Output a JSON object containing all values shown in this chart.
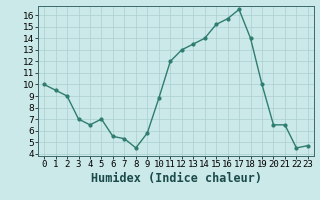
{
  "x": [
    0,
    1,
    2,
    3,
    4,
    5,
    6,
    7,
    8,
    9,
    10,
    11,
    12,
    13,
    14,
    15,
    16,
    17,
    18,
    19,
    20,
    21,
    22,
    23
  ],
  "y": [
    10.0,
    9.5,
    9.0,
    7.0,
    6.5,
    7.0,
    5.5,
    5.3,
    4.5,
    5.8,
    8.8,
    12.0,
    13.0,
    13.5,
    14.0,
    15.2,
    15.7,
    16.5,
    14.0,
    10.0,
    6.5,
    6.5,
    4.5,
    4.7
  ],
  "line_color": "#2e7d6e",
  "marker": "o",
  "marker_size": 2.0,
  "line_width": 1.0,
  "xlabel": "Humidex (Indice chaleur)",
  "ylim": [
    3.8,
    16.8
  ],
  "xlim": [
    -0.5,
    23.5
  ],
  "yticks": [
    4,
    5,
    6,
    7,
    8,
    9,
    10,
    11,
    12,
    13,
    14,
    15,
    16
  ],
  "bg_color": "#cce9e9",
  "grid_color": "#aacece",
  "tick_fontsize": 6.5,
  "xlabel_fontsize": 8.5
}
